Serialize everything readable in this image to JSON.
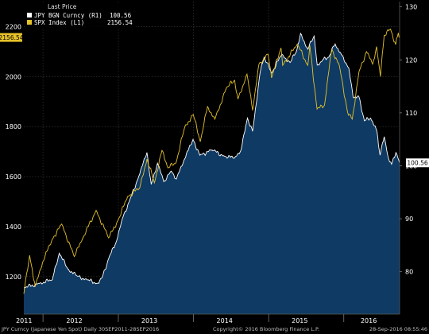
{
  "chart_data": {
    "type": "area",
    "legend": {
      "title": "Last Price",
      "placement": "top-left",
      "entries": [
        {
          "ticker": "JPY BGN Curncy (R1)",
          "last": "100.56",
          "color": "#ffffff"
        },
        {
          "ticker": "SPX Index (L1)",
          "last": "2156.54",
          "color": "#e6c229"
        }
      ]
    },
    "x_ticks": [
      "2011",
      "2012",
      "2013",
      "2014",
      "2015",
      "2016"
    ],
    "x_range": [
      "2011-09-30",
      "2016-09-28"
    ],
    "left_axis": {
      "min": 1050,
      "max": 2300,
      "ticks": [
        "1200",
        "1400",
        "1600",
        "1800",
        "2000",
        "2200"
      ],
      "last_label": "2156.54"
    },
    "right_axis": {
      "min": 72,
      "max": 131,
      "ticks": [
        "80",
        "90",
        "100",
        "110",
        "120",
        "130"
      ],
      "last_label": "100.56"
    },
    "series": [
      {
        "name": "JPY BGN Curncy (R1)",
        "axis": "right",
        "color": "#ffffff",
        "fill": "#0f3a63",
        "points": [
          [
            "2011-09-30",
            77.0
          ],
          [
            "2011-12-15",
            77.8
          ],
          [
            "2012-02-15",
            78.5
          ],
          [
            "2012-03-20",
            83.5
          ],
          [
            "2012-05-01",
            80.5
          ],
          [
            "2012-06-15",
            79.2
          ],
          [
            "2012-08-01",
            78.5
          ],
          [
            "2012-09-20",
            77.8
          ],
          [
            "2012-10-15",
            79.0
          ],
          [
            "2012-11-15",
            82.5
          ],
          [
            "2012-12-20",
            85.5
          ],
          [
            "2013-01-25",
            90.5
          ],
          [
            "2013-02-25",
            93.5
          ],
          [
            "2013-04-10",
            98.0
          ],
          [
            "2013-05-20",
            102.5
          ],
          [
            "2013-06-10",
            96.5
          ],
          [
            "2013-07-10",
            100.5
          ],
          [
            "2013-08-10",
            97.0
          ],
          [
            "2013-09-15",
            99.0
          ],
          [
            "2013-10-10",
            97.5
          ],
          [
            "2013-11-15",
            101.0
          ],
          [
            "2013-12-30",
            105.0
          ],
          [
            "2014-02-01",
            102.0
          ],
          [
            "2014-04-01",
            103.0
          ],
          [
            "2014-06-01",
            101.8
          ],
          [
            "2014-07-20",
            101.5
          ],
          [
            "2014-08-20",
            103.0
          ],
          [
            "2014-09-20",
            109.0
          ],
          [
            "2014-10-15",
            106.5
          ],
          [
            "2014-11-20",
            117.5
          ],
          [
            "2014-12-10",
            120.5
          ],
          [
            "2015-01-15",
            117.5
          ],
          [
            "2015-03-05",
            121.0
          ],
          [
            "2015-04-15",
            119.5
          ],
          [
            "2015-05-15",
            121.5
          ],
          [
            "2015-06-05",
            125.0
          ],
          [
            "2015-07-10",
            122.0
          ],
          [
            "2015-08-10",
            124.5
          ],
          [
            "2015-08-25",
            119.0
          ],
          [
            "2015-09-20",
            120.0
          ],
          [
            "2015-10-20",
            120.5
          ],
          [
            "2015-11-20",
            123.0
          ],
          [
            "2015-12-20",
            121.0
          ],
          [
            "2016-01-25",
            118.5
          ],
          [
            "2016-02-15",
            113.0
          ],
          [
            "2016-03-15",
            113.0
          ],
          [
            "2016-04-10",
            108.5
          ],
          [
            "2016-05-10",
            109.0
          ],
          [
            "2016-06-10",
            106.5
          ],
          [
            "2016-06-25",
            102.0
          ],
          [
            "2016-07-15",
            105.5
          ],
          [
            "2016-08-01",
            102.0
          ],
          [
            "2016-08-20",
            100.3
          ],
          [
            "2016-09-10",
            102.5
          ],
          [
            "2016-09-28",
            100.56
          ]
        ]
      },
      {
        "name": "SPX Index (L1)",
        "axis": "left",
        "color": "#e6c229",
        "points": [
          [
            "2011-09-30",
            1131
          ],
          [
            "2011-10-10",
            1195
          ],
          [
            "2011-10-28",
            1285
          ],
          [
            "2011-11-25",
            1160
          ],
          [
            "2011-12-30",
            1257
          ],
          [
            "2012-02-15",
            1350
          ],
          [
            "2012-04-01",
            1410
          ],
          [
            "2012-06-01",
            1280
          ],
          [
            "2012-07-10",
            1350
          ],
          [
            "2012-09-15",
            1465
          ],
          [
            "2012-11-15",
            1355
          ],
          [
            "2012-12-31",
            1426
          ],
          [
            "2013-02-15",
            1520
          ],
          [
            "2013-04-15",
            1555
          ],
          [
            "2013-05-20",
            1670
          ],
          [
            "2013-06-25",
            1575
          ],
          [
            "2013-08-01",
            1705
          ],
          [
            "2013-08-30",
            1635
          ],
          [
            "2013-10-08",
            1655
          ],
          [
            "2013-11-20",
            1800
          ],
          [
            "2013-12-31",
            1848
          ],
          [
            "2014-02-03",
            1740
          ],
          [
            "2014-03-10",
            1880
          ],
          [
            "2014-04-15",
            1830
          ],
          [
            "2014-06-10",
            1955
          ],
          [
            "2014-07-20",
            1985
          ],
          [
            "2014-08-05",
            1910
          ],
          [
            "2014-09-18",
            2010
          ],
          [
            "2014-10-15",
            1865
          ],
          [
            "2014-11-15",
            2050
          ],
          [
            "2014-12-29",
            2090
          ],
          [
            "2015-01-15",
            1995
          ],
          [
            "2015-03-02",
            2115
          ],
          [
            "2015-03-10",
            2045
          ],
          [
            "2015-05-20",
            2130
          ],
          [
            "2015-07-10",
            2045
          ],
          [
            "2015-07-20",
            2125
          ],
          [
            "2015-08-24",
            1870
          ],
          [
            "2015-09-29",
            1885
          ],
          [
            "2015-11-03",
            2110
          ],
          [
            "2015-12-10",
            2045
          ],
          [
            "2016-01-20",
            1855
          ],
          [
            "2016-02-11",
            1830
          ],
          [
            "2016-03-15",
            2020
          ],
          [
            "2016-04-20",
            2100
          ],
          [
            "2016-05-20",
            2050
          ],
          [
            "2016-06-08",
            2120
          ],
          [
            "2016-06-27",
            2000
          ],
          [
            "2016-07-15",
            2165
          ],
          [
            "2016-08-15",
            2190
          ],
          [
            "2016-09-09",
            2128
          ],
          [
            "2016-09-22",
            2175
          ],
          [
            "2016-09-28",
            2156.54
          ]
        ]
      }
    ],
    "grid": true
  },
  "footer": {
    "left": "JPY Curncy (Japanese Yen Spot)  Daily 30SEP2011-28SEP2016",
    "center": "Copyright© 2016 Bloomberg Finance L.P.",
    "right": "28-Sep-2016 08:55:46"
  }
}
